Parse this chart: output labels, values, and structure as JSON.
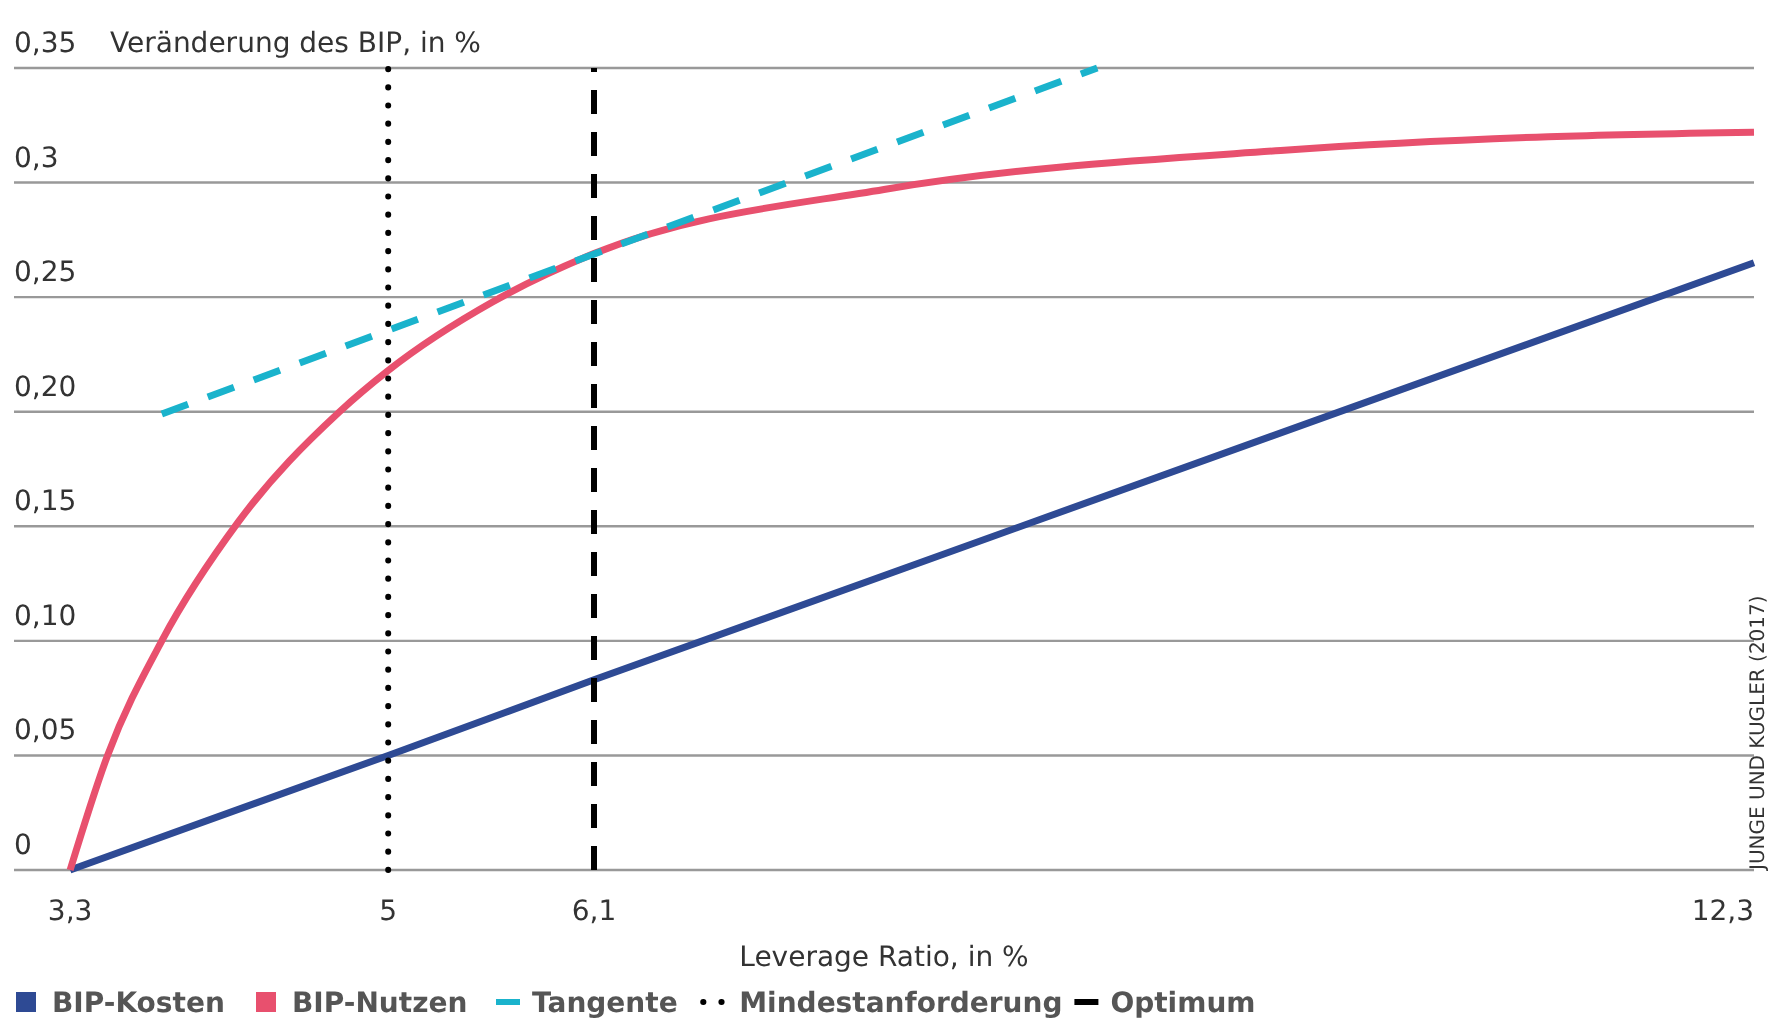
{
  "chart_data": {
    "type": "line",
    "xlabel": "Leverage Ratio, in %",
    "ylabel": "Veränderung des BIP, in %",
    "xlim": [
      3.0,
      12.3
    ],
    "ylim": [
      0,
      0.35
    ],
    "xticks": [
      {
        "value": 3.3,
        "label": "3,3"
      },
      {
        "value": 5,
        "label": "5"
      },
      {
        "value": 6.1,
        "label": "6,1"
      },
      {
        "value": 12.3,
        "label": "12,3"
      }
    ],
    "yticks": [
      {
        "value": 0,
        "label": "0"
      },
      {
        "value": 0.05,
        "label": "0,05"
      },
      {
        "value": 0.1,
        "label": "0,10"
      },
      {
        "value": 0.15,
        "label": "0,15"
      },
      {
        "value": 0.2,
        "label": "0,20"
      },
      {
        "value": 0.25,
        "label": "0,25"
      },
      {
        "value": 0.3,
        "label": "0,3"
      },
      {
        "value": 0.35,
        "label": "0,35"
      }
    ],
    "grid": "y",
    "legend": "bottom",
    "marker": "none",
    "series": [
      {
        "name": "BIP-Kosten",
        "color": "#2e4a94",
        "line_style": "solid",
        "x": [
          3.3,
          5,
          6.1,
          12.3
        ],
        "values": [
          0,
          0.05,
          0.083,
          0.265
        ]
      },
      {
        "name": "BIP-Nutzen",
        "color": "#e8506e",
        "line_style": "solid",
        "x": [
          3.3,
          3.5,
          3.79,
          4.2,
          4.74,
          5.0,
          5.56,
          6.1,
          7.65,
          9.77,
          11.2,
          12.3
        ],
        "values": [
          0,
          0.05,
          0.1,
          0.152,
          0.2,
          0.218,
          0.248,
          0.269,
          0.297,
          0.314,
          0.32,
          0.322
        ]
      },
      {
        "name": "Tangente",
        "color": "#1ab3cc",
        "line_style": "dashed",
        "x": [
          3.79,
          8.79
        ],
        "values": [
          0.199,
          0.35
        ]
      }
    ],
    "ref_lines": [
      {
        "axis": "x",
        "value": 5,
        "label": "Mindestanforderung",
        "color": "#000000",
        "line_style": "dotted"
      },
      {
        "axis": "x",
        "value": 6.1,
        "label": "Optimum",
        "color": "#000000",
        "line_style": "dashed"
      }
    ],
    "annotations": [
      "JUNGE UND KUGLER (2017)"
    ]
  }
}
